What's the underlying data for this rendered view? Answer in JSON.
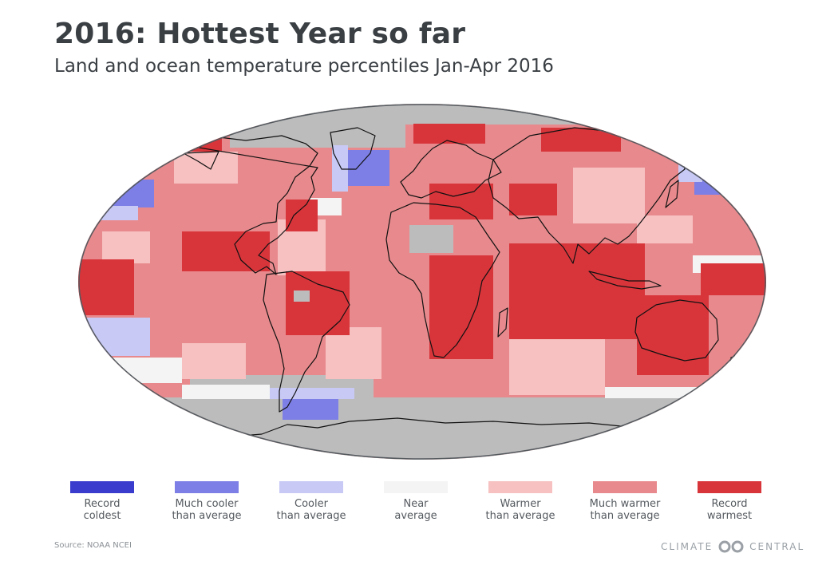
{
  "header": {
    "title": "2016: Hottest Year so far",
    "subtitle": "Land and ocean temperature percentiles Jan-Apr 2016"
  },
  "map": {
    "projection": "Robinson",
    "colors": {
      "record_coldest": "#3a3ccd",
      "much_cooler": "#7d7fe6",
      "cooler": "#c8c9f5",
      "near_average": "#f4f4f4",
      "warmer": "#f7c1c1",
      "much_warmer": "#e88a8d",
      "record_warmest": "#d8353b",
      "no_data": "#bcbcbc",
      "land_outline": "#111111"
    }
  },
  "legend": {
    "items": [
      {
        "label1": "Record",
        "label2": "coldest",
        "color": "#3a3ccd"
      },
      {
        "label1": "Much cooler",
        "label2": "than average",
        "color": "#7d7fe6"
      },
      {
        "label1": "Cooler",
        "label2": "than average",
        "color": "#c8c9f5"
      },
      {
        "label1": "Near",
        "label2": "average",
        "color": "#f4f4f4"
      },
      {
        "label1": "Warmer",
        "label2": "than average",
        "color": "#f7c1c1"
      },
      {
        "label1": "Much warmer",
        "label2": "than average",
        "color": "#e88a8d"
      },
      {
        "label1": "Record",
        "label2": "warmest",
        "color": "#d8353b"
      }
    ]
  },
  "footer": {
    "source": "Source: NOAA NCEI",
    "brand_left": "CLIMATE",
    "brand_right": "CENTRAL",
    "brand_logo_icon": "climate-central-logo-icon"
  }
}
